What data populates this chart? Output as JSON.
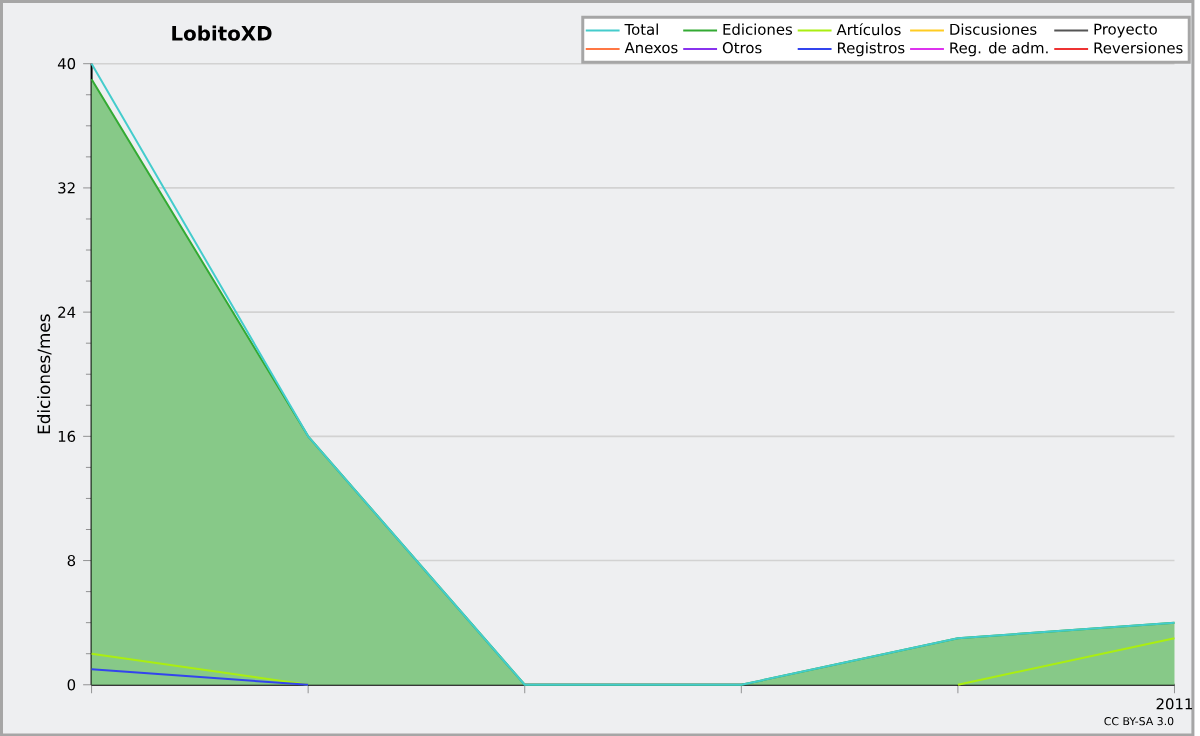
{
  "chart_data": {
    "type": "line",
    "title": "LobitoXD",
    "ylabel": "Ediciones/mes",
    "categories": [
      null,
      null,
      null,
      null,
      null,
      "2011"
    ],
    "ylim": [
      0,
      40
    ],
    "yticks": [
      0,
      8,
      16,
      24,
      32,
      40
    ],
    "grid": "y",
    "legend": "top right",
    "annotations": [
      "CC BY-SA 3.0"
    ],
    "series": [
      {
        "name": "Total",
        "color": "#44cccc",
        "values": [
          40,
          16,
          0,
          0,
          3,
          4
        ]
      },
      {
        "name": "Ediciones",
        "color": "#33aa33",
        "type": "area",
        "values": [
          39,
          16,
          0,
          0,
          3,
          4
        ]
      },
      {
        "name": "Artículos",
        "color": "#aaee11",
        "values": [
          2,
          0,
          null,
          null,
          0,
          3
        ]
      },
      {
        "name": "Discusiones",
        "color": "#ffcc22",
        "values": [
          null,
          null,
          null,
          null,
          null,
          null
        ]
      },
      {
        "name": "Proyecto",
        "color": "#555555",
        "values": [
          null,
          null,
          null,
          null,
          null,
          null
        ]
      },
      {
        "name": "Anexos",
        "color": "#ff7744",
        "values": [
          null,
          null,
          null,
          null,
          null,
          null
        ]
      },
      {
        "name": "Otros",
        "color": "#8833ee",
        "values": [
          null,
          null,
          null,
          null,
          null,
          null
        ]
      },
      {
        "name": "Registros",
        "color": "#3344ee",
        "values": [
          1,
          0,
          null,
          null,
          null,
          null
        ]
      },
      {
        "name": "Reg. de adm.",
        "color": "#dd33ee",
        "values": [
          null,
          null,
          null,
          null,
          null,
          null
        ]
      },
      {
        "name": "Reversiones",
        "color": "#ee3333",
        "values": [
          null,
          null,
          null,
          null,
          null,
          null
        ]
      }
    ]
  }
}
